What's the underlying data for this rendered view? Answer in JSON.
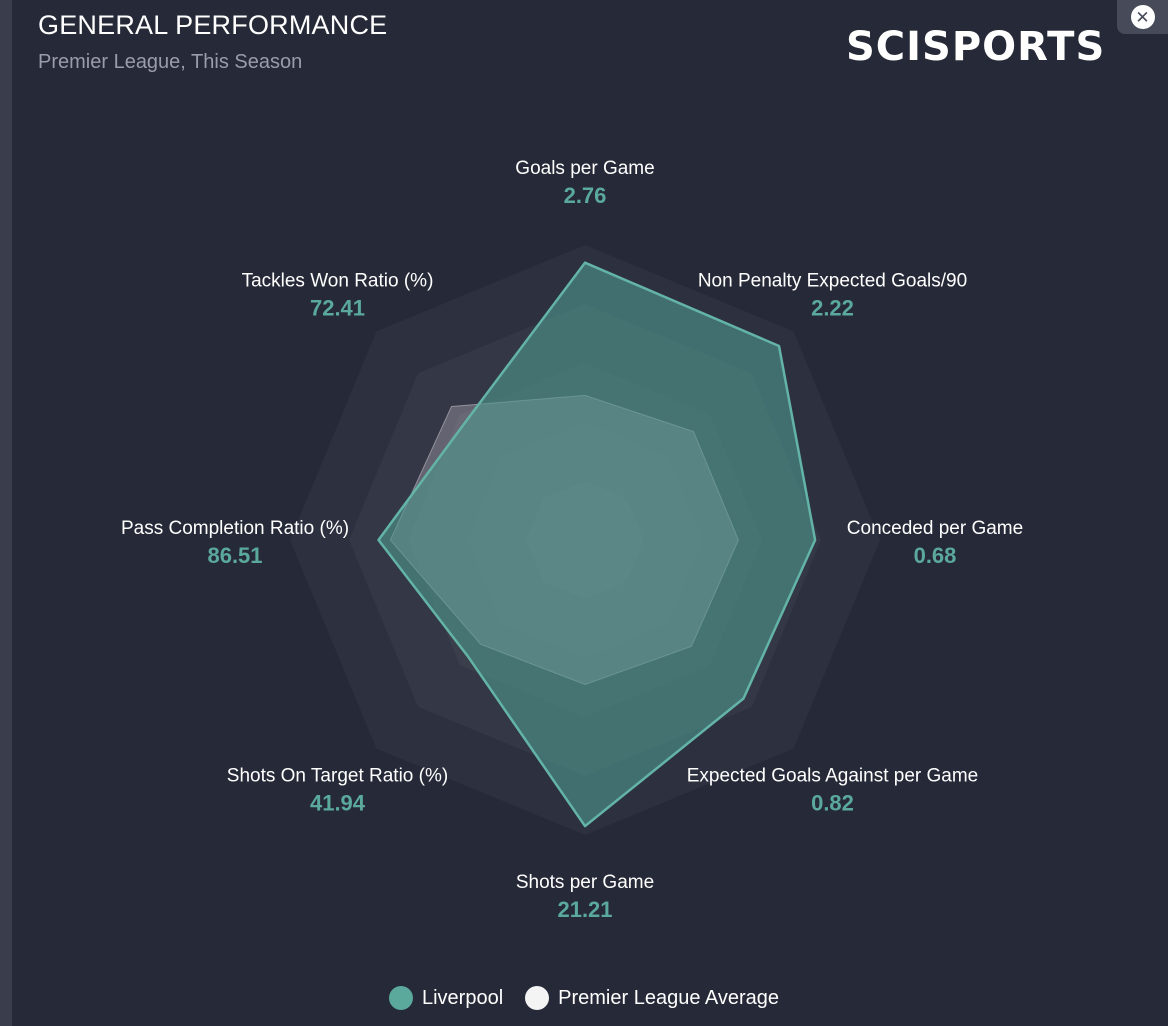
{
  "header": {
    "title": "GENERAL PERFORMANCE",
    "subtitle": "Premier League, This Season",
    "logo_text": "SCISPORTS"
  },
  "close_button": {
    "icon": "close-icon",
    "label": "✕"
  },
  "colors": {
    "accent": "#5aa99c",
    "liverpool_fill": "#4e968c",
    "average_fill": "#c9c1cf",
    "background": "#262938",
    "ring_fill": "#ffffff"
  },
  "chart_data": {
    "type": "radar",
    "axes": [
      {
        "label": "Goals per Game",
        "value": "2.76"
      },
      {
        "label": "Non Penalty Expected Goals/90",
        "value": "2.22"
      },
      {
        "label": "Conceded per Game",
        "value": "0.68"
      },
      {
        "label": "Expected Goals Against per Game",
        "value": "0.82"
      },
      {
        "label": "Shots per Game",
        "value": "21.21"
      },
      {
        "label": "Shots On Target Ratio (%)",
        "value": "41.94"
      },
      {
        "label": "Pass Completion Ratio (%)",
        "value": "86.51"
      },
      {
        "label": "Tackles Won Ratio (%)",
        "value": "72.41"
      }
    ],
    "rings": 5,
    "series": [
      {
        "name": "Liverpool",
        "normalized": [
          0.94,
          0.93,
          0.78,
          0.76,
          0.97,
          0.56,
          0.7,
          0.57
        ]
      },
      {
        "name": "Premier League Average",
        "normalized": [
          0.49,
          0.52,
          0.52,
          0.51,
          0.49,
          0.5,
          0.66,
          0.64
        ]
      }
    ],
    "legend_position": "bottom-center"
  },
  "legend": {
    "items": [
      {
        "label": "Liverpool",
        "color": "#5aa99c"
      },
      {
        "label": "Premier League Average",
        "color": "#f4f4f4"
      }
    ]
  }
}
